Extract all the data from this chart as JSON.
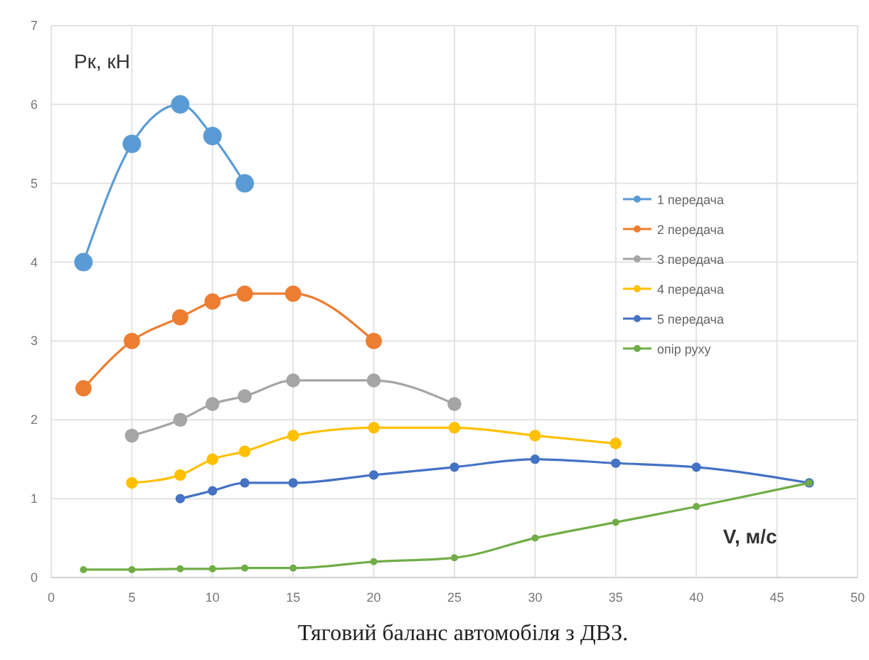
{
  "chart_data": {
    "type": "line",
    "title": "Тяговий баланс автомобіля з ДВЗ.",
    "xlabel": "V, м/с",
    "ylabel": "Рк, кН",
    "xlim": [
      0,
      50
    ],
    "xticks": [
      0,
      5,
      10,
      15,
      20,
      25,
      30,
      35,
      40,
      45,
      50
    ],
    "ylim": [
      0,
      7
    ],
    "yticks": [
      0,
      1,
      2,
      3,
      4,
      5,
      6,
      7
    ],
    "grid": true,
    "legend": "right",
    "marker": "circle",
    "line_style": "solid",
    "series": [
      {
        "name": "1 передача",
        "color": "#5b9bd5",
        "x": [
          2,
          5,
          8,
          10,
          12
        ],
        "values": [
          4,
          5.5,
          6,
          5.6,
          5
        ]
      },
      {
        "name": "2 передача",
        "color": "#ed7d31",
        "x": [
          2,
          5,
          8,
          10,
          12,
          15,
          20
        ],
        "values": [
          2.4,
          3,
          3.3,
          3.5,
          3.6,
          3.6,
          3
        ]
      },
      {
        "name": "3 передача",
        "color": "#a5a5a5",
        "x": [
          5,
          8,
          10,
          12,
          15,
          20,
          25
        ],
        "values": [
          1.8,
          2,
          2.2,
          2.3,
          2.5,
          2.5,
          2.2
        ]
      },
      {
        "name": "4 передача",
        "color": "#ffc000",
        "x": [
          5,
          8,
          10,
          12,
          15,
          20,
          25,
          30,
          35
        ],
        "values": [
          1.2,
          1.3,
          1.5,
          1.6,
          1.8,
          1.9,
          1.9,
          1.8,
          1.7
        ]
      },
      {
        "name": "5 передача",
        "color": "#4472c4",
        "x": [
          8,
          10,
          12,
          15,
          20,
          25,
          30,
          35,
          40,
          47
        ],
        "values": [
          1,
          1.1,
          1.2,
          1.2,
          1.3,
          1.4,
          1.5,
          1.45,
          1.4,
          1.2
        ]
      },
      {
        "name": "опір руху",
        "color": "#70ad47",
        "x": [
          2,
          5,
          8,
          10,
          12,
          15,
          20,
          25,
          30,
          35,
          40,
          47
        ],
        "values": [
          0.1,
          0.1,
          0.11,
          0.11,
          0.12,
          0.12,
          0.2,
          0.25,
          0.5,
          0.7,
          0.9,
          1.2
        ]
      }
    ]
  }
}
